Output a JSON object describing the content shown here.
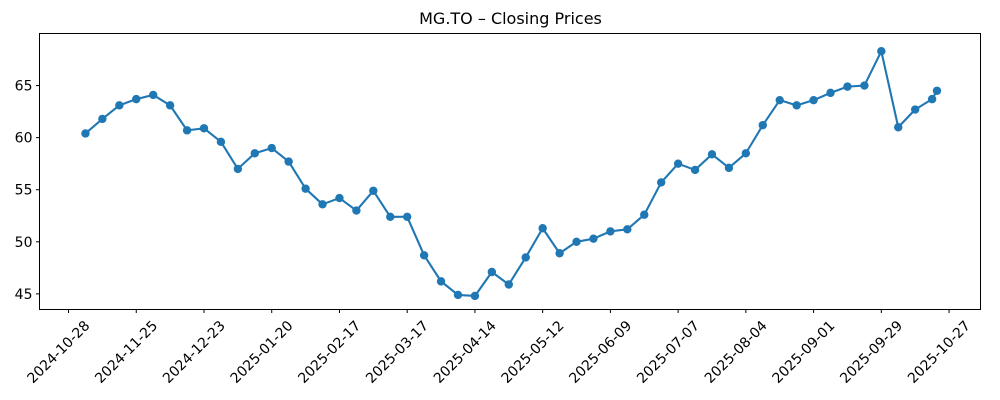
{
  "chart_data": {
    "type": "line",
    "title": "MG.TO – Closing Prices",
    "xlabel": "",
    "ylabel": "",
    "grid": false,
    "legend": null,
    "line_color": "#1f77b4",
    "marker": "o",
    "axis_color": "#000000",
    "x": [
      "2024-11-04",
      "2024-11-11",
      "2024-11-18",
      "2024-11-25",
      "2024-12-02",
      "2024-12-09",
      "2024-12-16",
      "2024-12-23",
      "2024-12-30",
      "2025-01-06",
      "2025-01-13",
      "2025-01-20",
      "2025-01-27",
      "2025-02-03",
      "2025-02-10",
      "2025-02-17",
      "2025-02-24",
      "2025-03-03",
      "2025-03-10",
      "2025-03-17",
      "2025-03-24",
      "2025-03-31",
      "2025-04-07",
      "2025-04-14",
      "2025-04-21",
      "2025-04-28",
      "2025-05-05",
      "2025-05-12",
      "2025-05-19",
      "2025-05-26",
      "2025-06-02",
      "2025-06-09",
      "2025-06-16",
      "2025-06-23",
      "2025-06-30",
      "2025-07-07",
      "2025-07-14",
      "2025-07-21",
      "2025-07-28",
      "2025-08-04",
      "2025-08-11",
      "2025-08-18",
      "2025-08-25",
      "2025-09-01",
      "2025-09-08",
      "2025-09-15",
      "2025-09-22",
      "2025-09-29",
      "2025-10-06",
      "2025-10-13",
      "2025-10-20",
      "2025-10-22"
    ],
    "values": [
      60.4,
      61.8,
      63.1,
      63.7,
      64.1,
      63.1,
      60.7,
      60.9,
      59.6,
      57.0,
      58.5,
      59.0,
      57.7,
      55.1,
      53.6,
      54.2,
      53.0,
      54.9,
      52.4,
      52.4,
      48.7,
      46.2,
      44.9,
      44.8,
      47.1,
      45.9,
      48.5,
      51.3,
      48.9,
      50.0,
      50.3,
      51.0,
      51.2,
      52.6,
      55.7,
      57.5,
      56.9,
      58.4,
      57.1,
      58.5,
      61.2,
      63.6,
      63.1,
      63.6,
      64.3,
      64.9,
      65.0,
      68.3,
      61.0,
      62.7,
      63.7,
      64.5
    ],
    "x_tick_labels": [
      "2024-10-28",
      "2024-11-25",
      "2024-12-23",
      "2025-01-20",
      "2025-02-17",
      "2025-03-17",
      "2025-04-14",
      "2025-05-12",
      "2025-06-09",
      "2025-07-07",
      "2025-08-04",
      "2025-09-01",
      "2025-09-29",
      "2025-10-27"
    ],
    "y_ticks": [
      45,
      50,
      55,
      60,
      65
    ],
    "ylim": [
      43.5,
      70.0
    ],
    "xlim": [
      "2024-10-16",
      "2025-11-09"
    ]
  }
}
